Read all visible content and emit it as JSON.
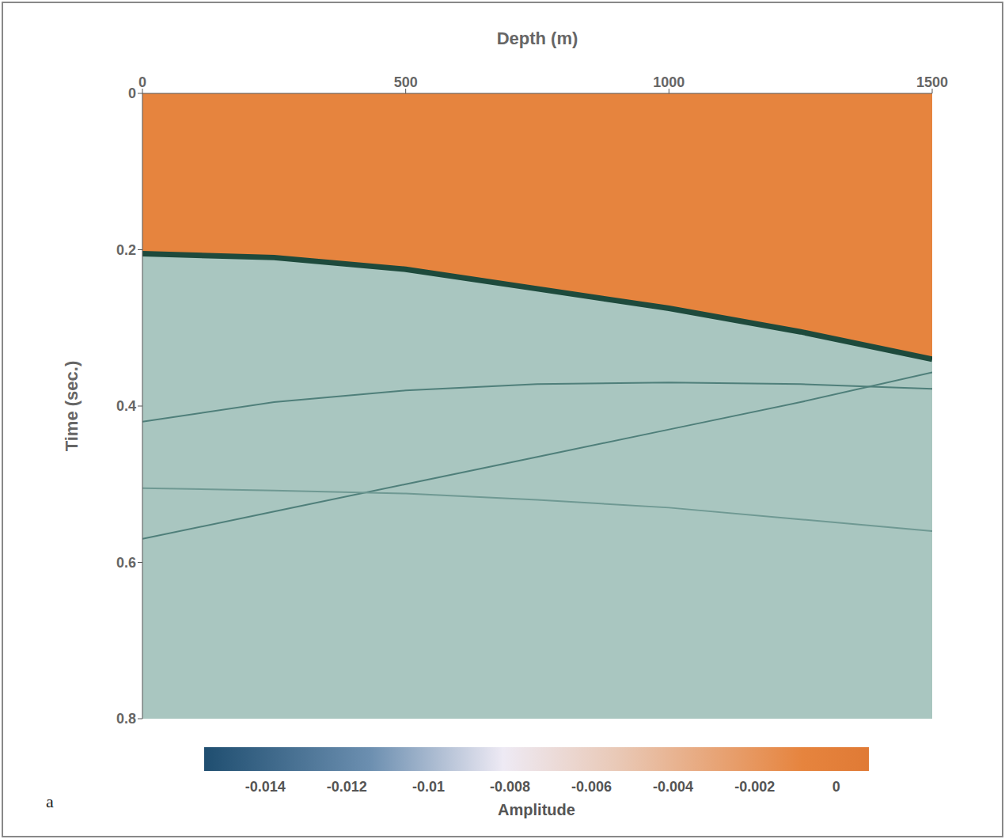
{
  "chart_data": {
    "type": "line",
    "panel": "a",
    "x_label": "Depth (m)",
    "y_label": "Time (sec.)",
    "xlim": [
      0,
      1500
    ],
    "xticks": [
      0,
      500,
      1000,
      1500
    ],
    "ylim": [
      0,
      0.8
    ],
    "yticks": [
      0,
      0.2,
      0.4,
      0.6,
      0.8
    ],
    "x": [
      0,
      250,
      500,
      750,
      1000,
      1250,
      1500
    ],
    "series": [
      {
        "type": "area",
        "color": "#1e4a3c",
        "values": [
          0.205,
          0.21,
          0.225,
          0.25,
          0.275,
          0.305,
          0.34
        ]
      },
      {
        "type": "line",
        "color": "#4f7f7a",
        "values": [
          0.42,
          0.395,
          0.38,
          0.372,
          0.37,
          0.372,
          0.378
        ]
      },
      {
        "type": "line",
        "color": "#4f7f7a",
        "values": [
          0.57,
          0.535,
          0.5,
          0.465,
          0.43,
          0.395,
          0.357
        ]
      },
      {
        "type": "line",
        "color": "#6f9993",
        "values": [
          0.505,
          0.508,
          0.512,
          0.52,
          0.53,
          0.545,
          0.56
        ]
      }
    ],
    "colorbar": {
      "label": "Amplitude",
      "range": [
        -0.0155,
        0.0008
      ],
      "ticks": [
        -0.014,
        -0.012,
        -0.01,
        -0.008,
        -0.006,
        -0.004,
        -0.002,
        0
      ]
    }
  }
}
